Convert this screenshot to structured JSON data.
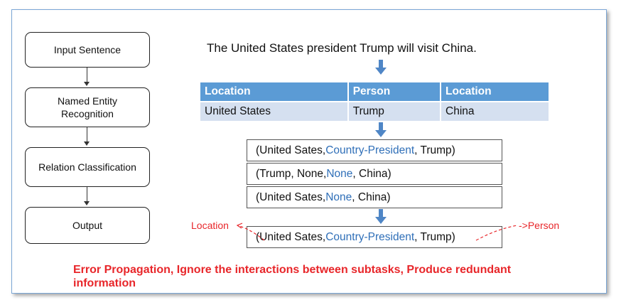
{
  "pipeline": {
    "steps": [
      "Input Sentence",
      "Named Entity\nRecognition",
      "Relation Classification",
      "Output"
    ]
  },
  "sentence": "The United States president Trump will visit China.",
  "entity_table": {
    "headers": [
      "Location",
      "Person",
      "Location"
    ],
    "values": [
      "United States",
      "Trump",
      "China"
    ]
  },
  "triples": [
    {
      "a": "(United Sates, ",
      "rel": "Country-President",
      "b": ", Trump)"
    },
    {
      "a": "(Trump, None, ",
      "rel": "None",
      "b": ", China)"
    },
    {
      "a": "(United Sates, ",
      "rel": "None",
      "b": ", China)"
    }
  ],
  "output_triple": {
    "a": "(United Sates, ",
    "rel": "Country-President",
    "b": ", Trump)"
  },
  "annotations": {
    "left": "Location",
    "right": "Person"
  },
  "note": "Error Propagation, Ignore the interactions between subtasks, Produce redundant information",
  "colors": {
    "header_blue": "#5b9bd5",
    "cell_light_blue": "#d5e0f0",
    "relation_blue": "#2f6fb8",
    "arrow_blue": "#4f86c6",
    "error_red": "#e8262a"
  }
}
